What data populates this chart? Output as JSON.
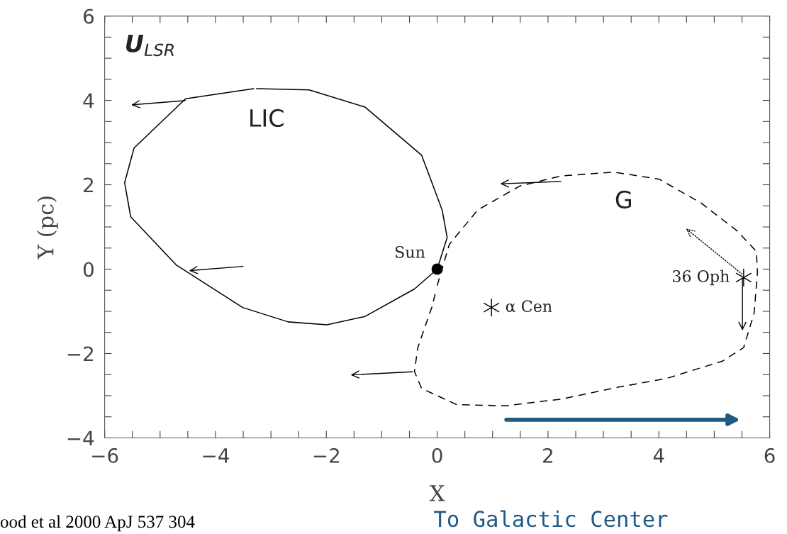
{
  "chart_data": {
    "type": "line",
    "xlabel": "X",
    "ylabel": "Y (pc)",
    "xlim": [
      -6,
      6
    ],
    "ylim": [
      -4,
      6
    ],
    "xticks": [
      {
        "value": -6,
        "label": "−6"
      },
      {
        "value": -5.5,
        "label": null
      },
      {
        "value": -5,
        "label": null
      },
      {
        "value": -4.5,
        "label": null
      },
      {
        "value": -4,
        "label": "−4"
      },
      {
        "value": -3.5,
        "label": null
      },
      {
        "value": -3,
        "label": null
      },
      {
        "value": -2.5,
        "label": null
      },
      {
        "value": -2,
        "label": "−2"
      },
      {
        "value": -1.5,
        "label": null
      },
      {
        "value": -1,
        "label": null
      },
      {
        "value": -0.5,
        "label": null
      },
      0,
      {
        "value": 0.5,
        "label": null
      },
      {
        "value": 1,
        "label": null
      },
      {
        "value": 1.5,
        "label": null
      },
      2,
      {
        "value": 2.5,
        "label": null
      },
      {
        "value": 3,
        "label": null
      },
      {
        "value": 3.5,
        "label": null
      },
      4,
      {
        "value": 4.5,
        "label": null
      },
      {
        "value": 5,
        "label": null
      },
      {
        "value": 5.5,
        "label": null
      },
      6
    ],
    "yticks": [
      {
        "value": -4,
        "label": "−4"
      },
      {
        "value": -3.5,
        "label": null
      },
      {
        "value": -3,
        "label": null
      },
      {
        "value": -2.5,
        "label": null
      },
      {
        "value": -2,
        "label": "−2"
      },
      {
        "value": -1.5,
        "label": null
      },
      {
        "value": -1,
        "label": null
      },
      {
        "value": -0.5,
        "label": null
      },
      0,
      {
        "value": 0.5,
        "label": null
      },
      {
        "value": 1,
        "label": null
      },
      {
        "value": 1.5,
        "label": null
      },
      2,
      {
        "value": 2.5,
        "label": null
      },
      {
        "value": 3,
        "label": null
      },
      {
        "value": 3.5,
        "label": null
      },
      4,
      {
        "value": 4.5,
        "label": null
      },
      {
        "value": 5,
        "label": null
      },
      {
        "value": 5.5,
        "label": null
      },
      6
    ],
    "grid": false,
    "legend": false,
    "series": [
      {
        "name": "LIC",
        "color": "#000000",
        "line_style": "solid",
        "x": [
          -3.26,
          -2.31,
          -1.3,
          -0.28,
          0.09,
          0.18,
          0.0,
          -0.41,
          -1.3,
          -1.99,
          -2.69,
          -3.51,
          -4.71,
          -5.53,
          -5.64,
          -5.47,
          -4.54,
          -3.31
        ],
        "values": [
          4.28,
          4.25,
          3.84,
          2.7,
          1.4,
          0.75,
          0.0,
          -0.47,
          -1.12,
          -1.32,
          -1.25,
          -0.91,
          0.1,
          1.24,
          2.05,
          2.87,
          4.04,
          4.28
        ]
      },
      {
        "name": "G",
        "color": "#000000",
        "line_style": "dashed",
        "x": [
          0.0,
          0.22,
          0.73,
          1.49,
          2.24,
          3.19,
          4.01,
          4.77,
          5.41,
          5.76,
          5.78,
          5.72,
          5.53,
          5.15,
          4.14,
          3.26,
          2.24,
          1.23,
          0.35,
          -0.28,
          -0.41,
          -0.35,
          -0.09,
          -0.03
        ],
        "values": [
          -0.39,
          0.59,
          1.4,
          1.97,
          2.21,
          2.3,
          2.13,
          1.56,
          0.91,
          0.42,
          -0.07,
          -1.04,
          -1.86,
          -2.18,
          -2.59,
          -2.8,
          -3.08,
          -3.24,
          -3.21,
          -2.83,
          -2.43,
          -1.86,
          -0.88,
          -0.55
        ]
      },
      {
        "type": "scatter",
        "name": "Sun",
        "marker": "circle",
        "color": "#000000",
        "x": [
          0.0
        ],
        "values": [
          0.0
        ]
      },
      {
        "type": "scatter",
        "name": "α Cen",
        "marker": "cross",
        "color": "#000000",
        "x": [
          0.98
        ],
        "values": [
          -0.91
        ]
      },
      {
        "type": "scatter",
        "name": "36 Oph",
        "marker": "cross",
        "color": "#000000",
        "x": [
          5.53
        ],
        "values": [
          -0.2
        ]
      }
    ],
    "annotations": [
      "U$_{LSR}$",
      "To Galactic Center",
      "ood et al 2000 ApJ 537 304"
    ]
  }
}
